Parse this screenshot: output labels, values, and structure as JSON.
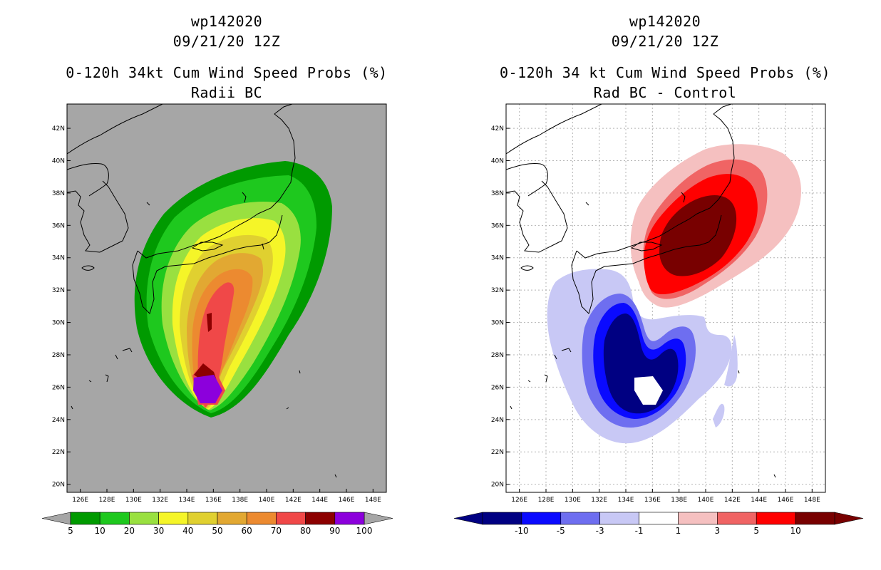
{
  "left": {
    "title_line1": "wp142020",
    "title_line2": "09/21/20 12Z",
    "title_line3": "0-120h 34kt Cum Wind Speed Probs (%)",
    "title_line4": "Radii BC"
  },
  "right": {
    "title_line1": "wp142020",
    "title_line2": "09/21/20 12Z",
    "title_line3": "0-120h 34 kt Cum Wind Speed Probs (%)",
    "title_line4": "Rad BC - Control"
  },
  "chart_data": [
    {
      "type": "heatmap",
      "title": "0-120h 34kt Cum Wind Speed Probs (%)",
      "subtitle": "Radii BC",
      "storm": "wp142020",
      "datetime": "09/21/20 12Z",
      "x_ticks": [
        "126E",
        "128E",
        "130E",
        "132E",
        "134E",
        "136E",
        "138E",
        "140E",
        "142E",
        "144E",
        "146E",
        "148E"
      ],
      "y_ticks": [
        "20N",
        "22N",
        "24N",
        "26N",
        "28N",
        "30N",
        "32N",
        "34N",
        "36N",
        "38N",
        "40N",
        "42N"
      ],
      "xlim": [
        125,
        149
      ],
      "ylim": [
        19.5,
        43.5
      ],
      "grid": false,
      "colorbar_levels": [
        "5",
        "10",
        "20",
        "30",
        "40",
        "50",
        "60",
        "70",
        "80",
        "90",
        "100"
      ],
      "colorbar_colors": [
        "#009a00",
        "#1ec81e",
        "#99e040",
        "#f5f528",
        "#e0d030",
        "#e2a832",
        "#ec8a30",
        "#f04848",
        "#8c0000",
        "#8c00dc"
      ]
    },
    {
      "type": "heatmap",
      "title": "0-120h 34 kt Cum Wind Speed Probs (%)",
      "subtitle": "Rad BC - Control",
      "storm": "wp142020",
      "datetime": "09/21/20 12Z",
      "x_ticks": [
        "126E",
        "128E",
        "130E",
        "132E",
        "134E",
        "136E",
        "138E",
        "140E",
        "142E",
        "144E",
        "146E",
        "148E"
      ],
      "y_ticks": [
        "20N",
        "22N",
        "24N",
        "26N",
        "28N",
        "30N",
        "32N",
        "34N",
        "36N",
        "38N",
        "40N",
        "42N"
      ],
      "xlim": [
        125,
        149
      ],
      "ylim": [
        19.5,
        43.5
      ],
      "grid": true,
      "colorbar_levels": [
        "-10",
        "-5",
        "-3",
        "-1",
        "1",
        "3",
        "5",
        "10"
      ],
      "colorbar_colors": [
        "#000082",
        "#0a0aff",
        "#6e6ef0",
        "#c8c8f5",
        "#ffffff",
        "#f5c0c0",
        "#f06464",
        "#ff0000",
        "#780000"
      ]
    }
  ]
}
